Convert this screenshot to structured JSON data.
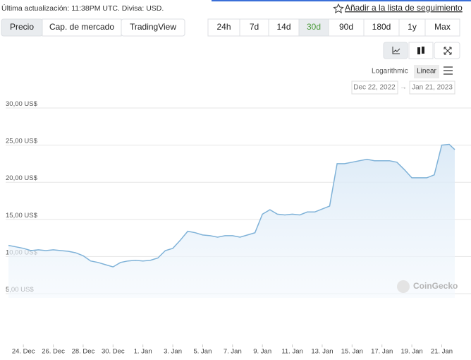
{
  "header": {
    "updated": "Última actualización: 11:38PM UTC. Divisa: USD.",
    "watchlist": "Añadir a la lista de seguimiento"
  },
  "tabs": [
    "Precio",
    "Cap. de mercado",
    "TradingView"
  ],
  "ranges": [
    "24h",
    "7d",
    "14d",
    "30d",
    "90d",
    "180d",
    "1y",
    "Max"
  ],
  "scale_options": [
    "Logarithmic",
    "Linear"
  ],
  "date_range": {
    "from": "Dec 22, 2022",
    "separator": "→",
    "to": "Jan 21, 2023"
  },
  "watermark": "CoinGecko",
  "chart_data": {
    "type": "area",
    "color": "#7fb2d8",
    "x": [
      "2022-12-23T00:00",
      "2022-12-23T12:00",
      "2022-12-24T00:00",
      "2022-12-24T12:00",
      "2022-12-25T00:00",
      "2022-12-25T12:00",
      "2022-12-26T00:00",
      "2022-12-26T12:00",
      "2022-12-27T00:00",
      "2022-12-27T12:00",
      "2022-12-28T00:00",
      "2022-12-28T12:00",
      "2022-12-29T00:00",
      "2022-12-29T12:00",
      "2022-12-30T00:00",
      "2022-12-30T12:00",
      "2022-12-31T00:00",
      "2022-12-31T12:00",
      "2023-01-01T00:00",
      "2023-01-01T12:00",
      "2023-01-02T00:00",
      "2023-01-02T12:00",
      "2023-01-03T00:00",
      "2023-01-03T12:00",
      "2023-01-04T00:00",
      "2023-01-04T12:00",
      "2023-01-05T00:00",
      "2023-01-05T12:00",
      "2023-01-06T00:00",
      "2023-01-06T12:00",
      "2023-01-07T00:00",
      "2023-01-07T12:00",
      "2023-01-08T00:00",
      "2023-01-08T12:00",
      "2023-01-09T00:00",
      "2023-01-09T12:00",
      "2023-01-10T00:00",
      "2023-01-10T12:00",
      "2023-01-11T00:00",
      "2023-01-11T12:00",
      "2023-01-12T00:00",
      "2023-01-12T12:00",
      "2023-01-13T00:00",
      "2023-01-13T12:00",
      "2023-01-14T00:00",
      "2023-01-14T12:00",
      "2023-01-15T00:00",
      "2023-01-15T12:00",
      "2023-01-16T00:00",
      "2023-01-16T12:00",
      "2023-01-17T00:00",
      "2023-01-17T12:00",
      "2023-01-18T00:00",
      "2023-01-18T12:00",
      "2023-01-19T00:00",
      "2023-01-19T12:00",
      "2023-01-20T00:00",
      "2023-01-20T12:00",
      "2023-01-21T00:00",
      "2023-01-21T12:00",
      "2023-01-21T21:00"
    ],
    "values": [
      11.5,
      11.3,
      11.1,
      10.8,
      10.9,
      10.8,
      10.9,
      10.8,
      10.7,
      10.5,
      10.1,
      9.4,
      9.2,
      8.9,
      8.6,
      9.2,
      9.4,
      9.5,
      9.4,
      9.5,
      9.8,
      10.8,
      11.1,
      12.2,
      13.4,
      13.2,
      12.9,
      12.8,
      12.6,
      12.8,
      12.8,
      12.6,
      12.9,
      13.2,
      15.7,
      16.3,
      15.7,
      15.6,
      15.7,
      15.6,
      16.0,
      16.0,
      16.4,
      16.8,
      22.5,
      22.5,
      22.7,
      22.9,
      23.1,
      22.9,
      22.9,
      22.9,
      22.7,
      21.7,
      20.6,
      20.6,
      20.6,
      21.0,
      25.0,
      25.1,
      24.4
    ],
    "xlim": [
      "2022-12-23T00:00",
      "2023-01-21T21:00"
    ],
    "xticks": [
      {
        "value": "2022-12-24T00:00",
        "label": "24. Dec"
      },
      {
        "value": "2022-12-26T00:00",
        "label": "26. Dec"
      },
      {
        "value": "2022-12-28T00:00",
        "label": "28. Dec"
      },
      {
        "value": "2022-12-30T00:00",
        "label": "30. Dec"
      },
      {
        "value": "2023-01-01T00:00",
        "label": "1. Jan"
      },
      {
        "value": "2023-01-03T00:00",
        "label": "3. Jan"
      },
      {
        "value": "2023-01-05T00:00",
        "label": "5. Jan"
      },
      {
        "value": "2023-01-07T00:00",
        "label": "7. Jan"
      },
      {
        "value": "2023-01-09T00:00",
        "label": "9. Jan"
      },
      {
        "value": "2023-01-11T00:00",
        "label": "11. Jan"
      },
      {
        "value": "2023-01-13T00:00",
        "label": "13. Jan"
      },
      {
        "value": "2023-01-15T00:00",
        "label": "15. Jan"
      },
      {
        "value": "2023-01-17T00:00",
        "label": "17. Jan"
      },
      {
        "value": "2023-01-19T00:00",
        "label": "19. Jan"
      },
      {
        "value": "2023-01-21T00:00",
        "label": "21. Jan"
      }
    ],
    "ylim": [
      5,
      30
    ],
    "yticks": [
      {
        "value": 5,
        "label": "5,00 US$"
      },
      {
        "value": 10,
        "label": "10,00 US$"
      },
      {
        "value": 15,
        "label": "15,00 US$"
      },
      {
        "value": 20,
        "label": "20,00 US$"
      },
      {
        "value": 25,
        "label": "25,00 US$"
      },
      {
        "value": 30,
        "label": "30,00 US$"
      }
    ],
    "grid": true
  }
}
